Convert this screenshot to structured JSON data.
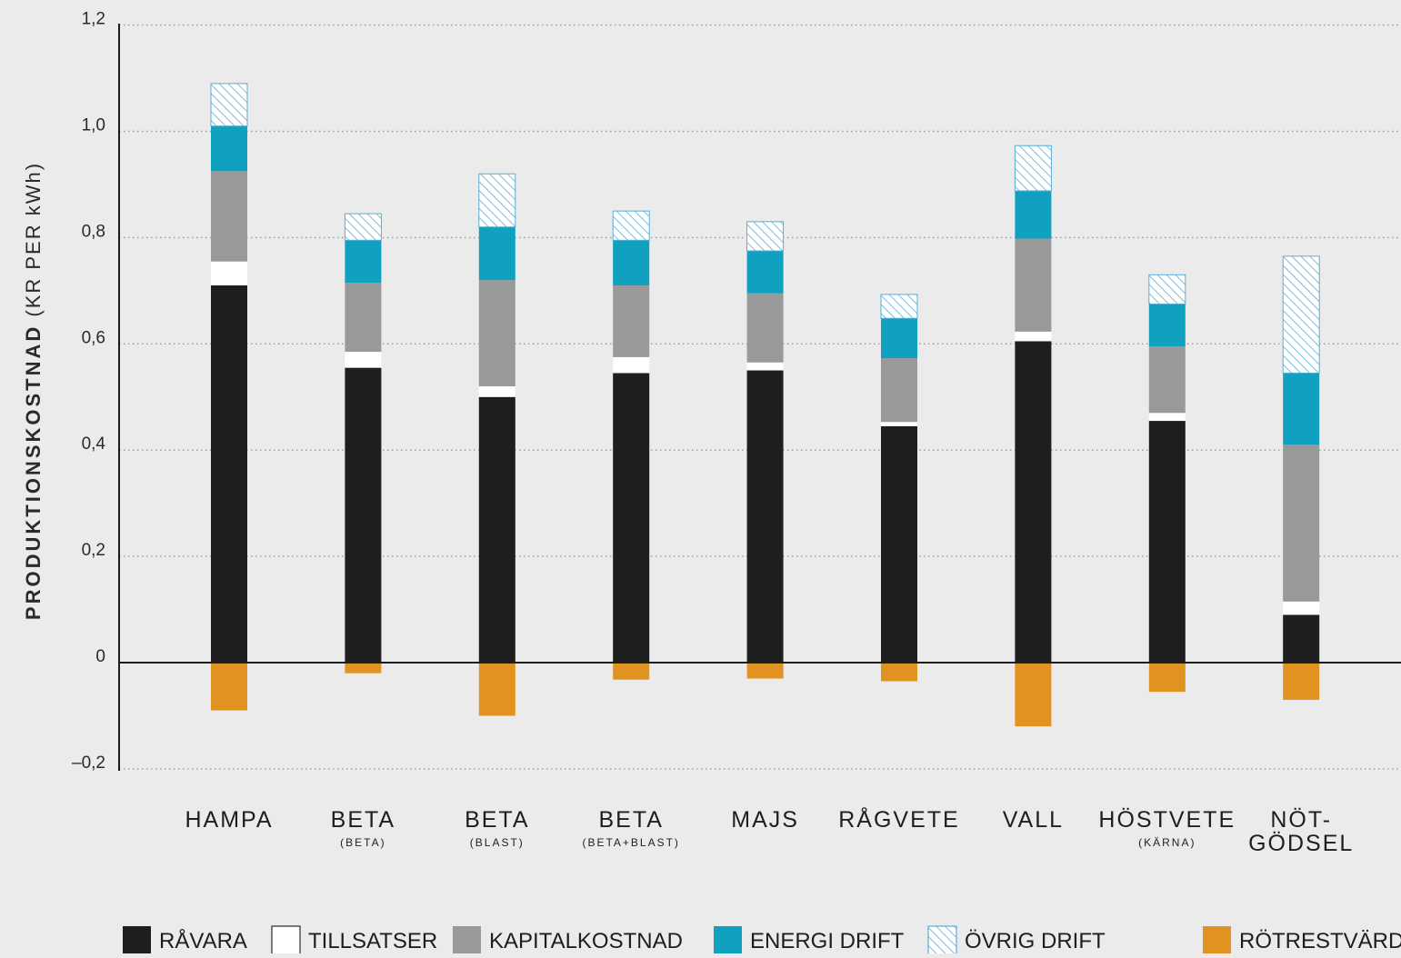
{
  "chart_data": {
    "type": "bar",
    "stacked": true,
    "ylabel": "PRODUKTIONSKOSTNAD (KR PER kWh)",
    "ylabel_main": "PRODUKTIONSKOSTNAD",
    "ylabel_unit": "(KR PER kWh)",
    "ylim": [
      -0.2,
      1.2
    ],
    "yticks": [
      1.2,
      1.0,
      0.8,
      0.6,
      0.4,
      0.2,
      0,
      -0.2
    ],
    "ytick_labels": [
      "1,2",
      "1,0",
      "0,8",
      "0,6",
      "0,4",
      "0,2",
      "0",
      "–0,2"
    ],
    "grid": "dotted horizontal",
    "legend_position": "bottom",
    "categories": [
      {
        "label": "HAMPA",
        "sublabel": ""
      },
      {
        "label": "BETA",
        "sublabel": "(BETA)"
      },
      {
        "label": "BETA",
        "sublabel": "(BLAST)"
      },
      {
        "label": "BETA",
        "sublabel": "(BETA+BLAST)"
      },
      {
        "label": "MAJS",
        "sublabel": ""
      },
      {
        "label": "RÅGVETE",
        "sublabel": ""
      },
      {
        "label": "VALL",
        "sublabel": ""
      },
      {
        "label": "HÖSTVETE",
        "sublabel": "(KÄRNA)"
      },
      {
        "label": "NÖT-",
        "sublabel": "",
        "label2": "GÖDSEL"
      }
    ],
    "series": [
      {
        "name": "RÅVARA",
        "color": "#1e1e1e",
        "pattern": "solid",
        "values": [
          0.71,
          0.555,
          0.5,
          0.545,
          0.55,
          0.445,
          0.605,
          0.455,
          0.09
        ]
      },
      {
        "name": "TILLSATSER",
        "color": "#ffffff",
        "pattern": "solid",
        "values": [
          0.045,
          0.03,
          0.02,
          0.03,
          0.015,
          0.008,
          0.018,
          0.015,
          0.025
        ]
      },
      {
        "name": "KAPITALKOSTNAD",
        "color": "#999999",
        "pattern": "solid",
        "values": [
          0.17,
          0.13,
          0.2,
          0.135,
          0.13,
          0.12,
          0.175,
          0.125,
          0.295
        ]
      },
      {
        "name": "ENERGI DRIFT",
        "color": "#0fa1bf",
        "pattern": "solid",
        "values": [
          0.085,
          0.08,
          0.1,
          0.085,
          0.08,
          0.075,
          0.09,
          0.08,
          0.135
        ]
      },
      {
        "name": "ÖVRIG DRIFT",
        "color": "#5aaed6",
        "pattern": "hatched",
        "values": [
          0.08,
          0.05,
          0.1,
          0.055,
          0.055,
          0.045,
          0.085,
          0.055,
          0.22
        ]
      },
      {
        "name": "RÖTRESTVÄRDE",
        "color": "#e09320",
        "pattern": "solid",
        "values": [
          -0.09,
          -0.02,
          -0.1,
          -0.032,
          -0.03,
          -0.035,
          -0.12,
          -0.055,
          -0.07
        ]
      }
    ]
  }
}
